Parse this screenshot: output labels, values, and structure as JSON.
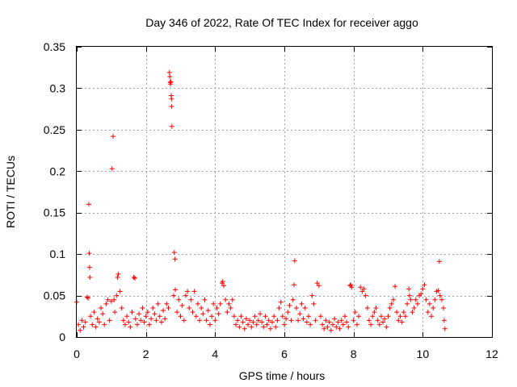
{
  "chart_data": {
    "type": "scatter",
    "title": "Day 346 of 2022, Rate Of TEC Index for receiver aggo",
    "xlabel": "GPS time / hours",
    "ylabel": "ROTI / TECUs",
    "xlim": [
      0,
      12
    ],
    "ylim": [
      0,
      0.35
    ],
    "xticks": [
      "0",
      "2",
      "4",
      "6",
      "8",
      "10",
      "12"
    ],
    "yticks": [
      "0",
      "0.05",
      "0.1",
      "0.15",
      "0.2",
      "0.25",
      "0.3",
      "0.35"
    ],
    "grid": true,
    "marker": "plus",
    "color": "#ff0000",
    "series": [
      {
        "name": "ROTI",
        "points": [
          [
            0.0,
            0.042
          ],
          [
            0.05,
            0.015
          ],
          [
            0.1,
            0.008
          ],
          [
            0.15,
            0.02
          ],
          [
            0.2,
            0.012
          ],
          [
            0.25,
            0.018
          ],
          [
            0.3,
            0.048
          ],
          [
            0.33,
            0.047
          ],
          [
            0.35,
            0.16
          ],
          [
            0.36,
            0.101
          ],
          [
            0.37,
            0.084
          ],
          [
            0.38,
            0.072
          ],
          [
            0.4,
            0.025
          ],
          [
            0.45,
            0.015
          ],
          [
            0.5,
            0.03
          ],
          [
            0.55,
            0.012
          ],
          [
            0.6,
            0.022
          ],
          [
            0.65,
            0.018
          ],
          [
            0.7,
            0.035
          ],
          [
            0.75,
            0.028
          ],
          [
            0.8,
            0.015
          ],
          [
            0.85,
            0.04
          ],
          [
            0.9,
            0.045
          ],
          [
            0.95,
            0.02
          ],
          [
            1.0,
            0.043
          ],
          [
            1.02,
            0.203
          ],
          [
            1.05,
            0.242
          ],
          [
            1.08,
            0.045
          ],
          [
            1.1,
            0.03
          ],
          [
            1.15,
            0.05
          ],
          [
            1.18,
            0.072
          ],
          [
            1.2,
            0.076
          ],
          [
            1.25,
            0.055
          ],
          [
            1.3,
            0.035
          ],
          [
            1.35,
            0.02
          ],
          [
            1.4,
            0.015
          ],
          [
            1.45,
            0.025
          ],
          [
            1.5,
            0.018
          ],
          [
            1.55,
            0.012
          ],
          [
            1.6,
            0.03
          ],
          [
            1.65,
            0.072
          ],
          [
            1.68,
            0.071
          ],
          [
            1.7,
            0.022
          ],
          [
            1.75,
            0.015
          ],
          [
            1.8,
            0.028
          ],
          [
            1.85,
            0.02
          ],
          [
            1.9,
            0.035
          ],
          [
            1.95,
            0.018
          ],
          [
            2.0,
            0.025
          ],
          [
            2.05,
            0.03
          ],
          [
            2.1,
            0.015
          ],
          [
            2.15,
            0.022
          ],
          [
            2.2,
            0.035
          ],
          [
            2.25,
            0.028
          ],
          [
            2.3,
            0.02
          ],
          [
            2.35,
            0.04
          ],
          [
            2.4,
            0.025
          ],
          [
            2.45,
            0.018
          ],
          [
            2.5,
            0.032
          ],
          [
            2.55,
            0.022
          ],
          [
            2.6,
            0.04
          ],
          [
            2.65,
            0.035
          ],
          [
            2.68,
            0.319
          ],
          [
            2.69,
            0.314
          ],
          [
            2.7,
            0.307
          ],
          [
            2.71,
            0.305
          ],
          [
            2.72,
            0.308
          ],
          [
            2.73,
            0.291
          ],
          [
            2.74,
            0.287
          ],
          [
            2.74,
            0.278
          ],
          [
            2.75,
            0.254
          ],
          [
            2.8,
            0.05
          ],
          [
            2.82,
            0.102
          ],
          [
            2.84,
            0.094
          ],
          [
            2.85,
            0.057
          ],
          [
            2.9,
            0.03
          ],
          [
            2.95,
            0.045
          ],
          [
            3.0,
            0.025
          ],
          [
            3.05,
            0.038
          ],
          [
            3.1,
            0.02
          ],
          [
            3.15,
            0.05
          ],
          [
            3.2,
            0.055
          ],
          [
            3.25,
            0.035
          ],
          [
            3.3,
            0.045
          ],
          [
            3.35,
            0.03
          ],
          [
            3.4,
            0.055
          ],
          [
            3.45,
            0.025
          ],
          [
            3.5,
            0.04
          ],
          [
            3.55,
            0.02
          ],
          [
            3.6,
            0.035
          ],
          [
            3.65,
            0.028
          ],
          [
            3.7,
            0.045
          ],
          [
            3.75,
            0.02
          ],
          [
            3.8,
            0.032
          ],
          [
            3.85,
            0.015
          ],
          [
            3.9,
            0.025
          ],
          [
            3.95,
            0.04
          ],
          [
            4.0,
            0.02
          ],
          [
            4.05,
            0.035
          ],
          [
            4.1,
            0.028
          ],
          [
            4.15,
            0.04
          ],
          [
            4.2,
            0.065
          ],
          [
            4.22,
            0.067
          ],
          [
            4.25,
            0.062
          ],
          [
            4.3,
            0.045
          ],
          [
            4.35,
            0.03
          ],
          [
            4.4,
            0.04
          ],
          [
            4.45,
            0.035
          ],
          [
            4.5,
            0.045
          ],
          [
            4.55,
            0.025
          ],
          [
            4.6,
            0.015
          ],
          [
            4.65,
            0.02
          ],
          [
            4.7,
            0.012
          ],
          [
            4.75,
            0.025
          ],
          [
            4.8,
            0.018
          ],
          [
            4.85,
            0.01
          ],
          [
            4.9,
            0.022
          ],
          [
            4.95,
            0.015
          ],
          [
            5.0,
            0.02
          ],
          [
            5.05,
            0.012
          ],
          [
            5.1,
            0.018
          ],
          [
            5.15,
            0.025
          ],
          [
            5.2,
            0.015
          ],
          [
            5.25,
            0.02
          ],
          [
            5.3,
            0.028
          ],
          [
            5.35,
            0.018
          ],
          [
            5.4,
            0.012
          ],
          [
            5.45,
            0.025
          ],
          [
            5.5,
            0.015
          ],
          [
            5.55,
            0.02
          ],
          [
            5.6,
            0.01
          ],
          [
            5.65,
            0.018
          ],
          [
            5.7,
            0.025
          ],
          [
            5.75,
            0.012
          ],
          [
            5.8,
            0.02
          ],
          [
            5.85,
            0.035
          ],
          [
            5.9,
            0.042
          ],
          [
            5.95,
            0.025
          ],
          [
            6.0,
            0.015
          ],
          [
            6.05,
            0.022
          ],
          [
            6.1,
            0.03
          ],
          [
            6.15,
            0.038
          ],
          [
            6.2,
            0.02
          ],
          [
            6.25,
            0.045
          ],
          [
            6.28,
            0.063
          ],
          [
            6.3,
            0.092
          ],
          [
            6.35,
            0.035
          ],
          [
            6.4,
            0.02
          ],
          [
            6.45,
            0.028
          ],
          [
            6.5,
            0.04
          ],
          [
            6.55,
            0.022
          ],
          [
            6.6,
            0.035
          ],
          [
            6.65,
            0.018
          ],
          [
            6.7,
            0.025
          ],
          [
            6.75,
            0.015
          ],
          [
            6.8,
            0.05
          ],
          [
            6.85,
            0.04
          ],
          [
            6.9,
            0.02
          ],
          [
            6.95,
            0.065
          ],
          [
            7.0,
            0.062
          ],
          [
            7.05,
            0.025
          ],
          [
            7.1,
            0.015
          ],
          [
            7.15,
            0.01
          ],
          [
            7.2,
            0.02
          ],
          [
            7.25,
            0.012
          ],
          [
            7.3,
            0.018
          ],
          [
            7.35,
            0.008
          ],
          [
            7.4,
            0.015
          ],
          [
            7.45,
            0.022
          ],
          [
            7.5,
            0.012
          ],
          [
            7.55,
            0.018
          ],
          [
            7.6,
            0.01
          ],
          [
            7.65,
            0.02
          ],
          [
            7.7,
            0.015
          ],
          [
            7.75,
            0.025
          ],
          [
            7.8,
            0.018
          ],
          [
            7.85,
            0.012
          ],
          [
            7.9,
            0.062
          ],
          [
            7.92,
            0.063
          ],
          [
            7.95,
            0.06
          ],
          [
            8.0,
            0.02
          ],
          [
            8.05,
            0.03
          ],
          [
            8.1,
            0.015
          ],
          [
            8.15,
            0.025
          ],
          [
            8.2,
            0.06
          ],
          [
            8.25,
            0.055
          ],
          [
            8.3,
            0.058
          ],
          [
            8.35,
            0.05
          ],
          [
            8.4,
            0.035
          ],
          [
            8.45,
            0.02
          ],
          [
            8.5,
            0.015
          ],
          [
            8.55,
            0.025
          ],
          [
            8.6,
            0.03
          ],
          [
            8.65,
            0.035
          ],
          [
            8.7,
            0.02
          ],
          [
            8.75,
            0.015
          ],
          [
            8.8,
            0.025
          ],
          [
            8.85,
            0.018
          ],
          [
            8.9,
            0.022
          ],
          [
            8.95,
            0.012
          ],
          [
            9.0,
            0.025
          ],
          [
            9.05,
            0.035
          ],
          [
            9.1,
            0.04
          ],
          [
            9.15,
            0.045
          ],
          [
            9.2,
            0.061
          ],
          [
            9.25,
            0.03
          ],
          [
            9.3,
            0.02
          ],
          [
            9.35,
            0.025
          ],
          [
            9.4,
            0.018
          ],
          [
            9.45,
            0.03
          ],
          [
            9.5,
            0.025
          ],
          [
            9.55,
            0.04
          ],
          [
            9.6,
            0.058
          ],
          [
            9.62,
            0.05
          ],
          [
            9.65,
            0.045
          ],
          [
            9.7,
            0.03
          ],
          [
            9.75,
            0.035
          ],
          [
            9.8,
            0.045
          ],
          [
            9.85,
            0.04
          ],
          [
            9.9,
            0.05
          ],
          [
            9.95,
            0.052
          ],
          [
            10.0,
            0.058
          ],
          [
            10.05,
            0.063
          ],
          [
            10.1,
            0.045
          ],
          [
            10.15,
            0.03
          ],
          [
            10.2,
            0.04
          ],
          [
            10.25,
            0.025
          ],
          [
            10.3,
            0.035
          ],
          [
            10.35,
            0.045
          ],
          [
            10.4,
            0.055
          ],
          [
            10.45,
            0.056
          ],
          [
            10.48,
            0.091
          ],
          [
            10.5,
            0.05
          ],
          [
            10.55,
            0.045
          ],
          [
            10.6,
            0.035
          ],
          [
            10.62,
            0.02
          ],
          [
            10.64,
            0.01
          ]
        ]
      }
    ]
  }
}
